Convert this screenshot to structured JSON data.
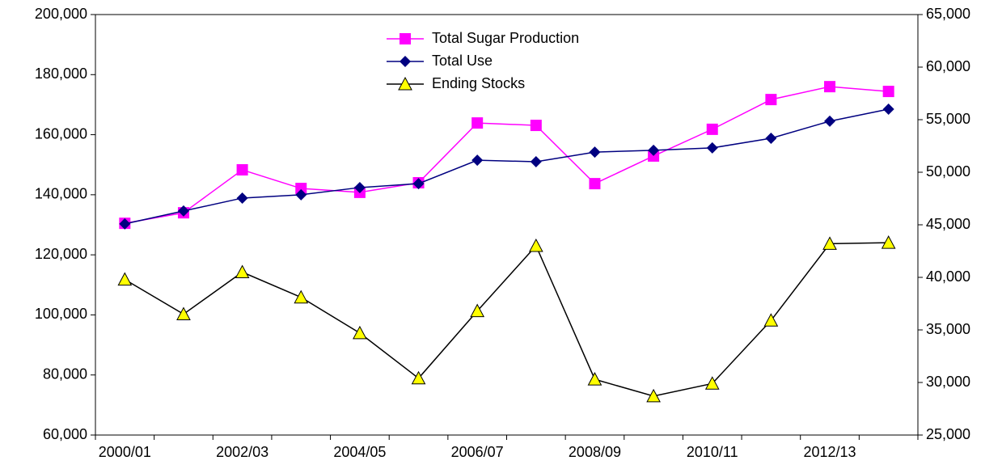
{
  "chart_data": {
    "type": "line",
    "categories": [
      "2000/01",
      null,
      "2002/03",
      null,
      "2004/05",
      null,
      "2006/07",
      null,
      "2008/09",
      null,
      "2010/11",
      null,
      "2012/13",
      null
    ],
    "series": [
      {
        "name": "Total Sugar Production",
        "color": "#ff00ff",
        "marker": "square",
        "axis": "y",
        "values": [
          130500,
          134000,
          148300,
          142100,
          140800,
          144000,
          163900,
          163100,
          143700,
          152900,
          161800,
          171700,
          176000,
          174400
        ]
      },
      {
        "name": "Total Use",
        "color": "#000080",
        "marker": "diamond",
        "axis": "y",
        "values": [
          130300,
          134600,
          138900,
          140000,
          142400,
          143700,
          151500,
          151000,
          154200,
          154800,
          155600,
          158800,
          164500,
          168500
        ]
      },
      {
        "name": "Ending Stocks",
        "color": "#000000",
        "marker_fill": "#ffff00",
        "marker": "triangle",
        "axis": "y2",
        "values": [
          39800,
          36500,
          40500,
          38100,
          34700,
          30400,
          36800,
          43000,
          30300,
          28700,
          29900,
          35900,
          43200,
          43300
        ]
      }
    ],
    "ylim": [
      60000,
      200000
    ],
    "yticks": [
      {
        "value": 60000,
        "label": "60,000"
      },
      {
        "value": 80000,
        "label": "80,000"
      },
      {
        "value": 100000,
        "label": "100,000"
      },
      {
        "value": 120000,
        "label": "120,000"
      },
      {
        "value": 140000,
        "label": "140,000"
      },
      {
        "value": 160000,
        "label": "160,000"
      },
      {
        "value": 180000,
        "label": "180,000"
      },
      {
        "value": 200000,
        "label": "200,000"
      }
    ],
    "y2lim": [
      25000,
      65000
    ],
    "y2ticks": [
      {
        "value": 25000,
        "label": "25,000"
      },
      {
        "value": 30000,
        "label": "30,000"
      },
      {
        "value": 35000,
        "label": "35,000"
      },
      {
        "value": 40000,
        "label": "40,000"
      },
      {
        "value": 45000,
        "label": "45,000"
      },
      {
        "value": 50000,
        "label": "50,000"
      },
      {
        "value": 55000,
        "label": "55,000"
      },
      {
        "value": 60000,
        "label": "60,000"
      },
      {
        "value": 65000,
        "label": "65,000"
      }
    ],
    "legend": "top-center"
  }
}
